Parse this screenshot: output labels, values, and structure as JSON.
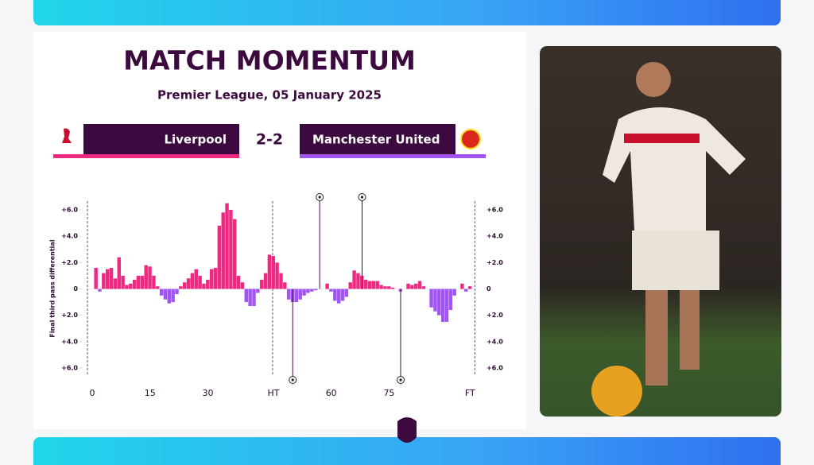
{
  "chart_data": {
    "type": "bar",
    "title": "MATCH MOMENTUM",
    "subtitle": "Premier League, 05 January 2025",
    "y_label": "Final third pass differential",
    "categories": [
      "0",
      null,
      null,
      null,
      null,
      null,
      null,
      null,
      null,
      null,
      null,
      null,
      null,
      null,
      null,
      "15",
      null,
      null,
      null,
      null,
      null,
      null,
      null,
      null,
      null,
      null,
      null,
      null,
      null,
      null,
      "30",
      null,
      null,
      null,
      null,
      null,
      null,
      null,
      null,
      null,
      null,
      null,
      null,
      null,
      null,
      null,
      null,
      "HT",
      null,
      null,
      null,
      null,
      null,
      null,
      null,
      null,
      null,
      null,
      null,
      null,
      null,
      null,
      "60",
      null,
      null,
      null,
      null,
      null,
      null,
      null,
      null,
      null,
      null,
      null,
      null,
      null,
      null,
      "75",
      null,
      null,
      null,
      null,
      null,
      null,
      null,
      null,
      null,
      null,
      null,
      null,
      null,
      null,
      null,
      null,
      null,
      null,
      null,
      null,
      "FT"
    ],
    "values": [
      0,
      1.6,
      -0.2,
      1.2,
      1.5,
      1.6,
      0.8,
      2.4,
      1.0,
      0.3,
      0.4,
      0.7,
      1.0,
      1.0,
      1.8,
      1.7,
      1.0,
      0.2,
      -0.5,
      -0.8,
      -1.1,
      -1.0,
      -0.4,
      0.2,
      0.5,
      0.8,
      1.2,
      1.5,
      1.0,
      0.4,
      0.7,
      1.5,
      1.6,
      4.8,
      5.8,
      6.5,
      6.0,
      5.3,
      1.0,
      0.5,
      -1.0,
      -1.3,
      -1.3,
      -0.3,
      0.7,
      1.2,
      2.6,
      2.5,
      2.0,
      1.2,
      0.5,
      -0.8,
      -1.0,
      -1.0,
      -0.8,
      -0.5,
      -0.3,
      -0.2,
      -0.1,
      0,
      0,
      0.4,
      -0.2,
      -0.9,
      -1.1,
      -0.9,
      -0.6,
      0.5,
      1.4,
      1.2,
      1.0,
      0.7,
      0.6,
      0.6,
      0.6,
      0.3,
      0.2,
      0.2,
      0.1,
      0,
      -0.2,
      0,
      0.4,
      0.3,
      0.4,
      0.6,
      0.2,
      0,
      -1.4,
      -1.7,
      -2.0,
      -2.5,
      -2.5,
      -1.6,
      -0.5,
      0,
      0.4,
      -0.2,
      0.2
    ],
    "positive_color": "#ec2a82",
    "negative_color": "#a155f2",
    "home_goals": [
      59,
      70
    ],
    "away_goals": [
      52,
      80
    ],
    "ylim": [
      -6,
      6
    ],
    "yticks": [
      {
        "value": -6,
        "label": "+6.0"
      },
      {
        "value": -4,
        "label": "+4.0"
      },
      {
        "value": -2,
        "label": "+2.0"
      },
      0,
      {
        "value": 2,
        "label": "+2.0"
      },
      {
        "value": 4,
        "label": "+4.0"
      },
      {
        "value": 6,
        "label": "+6.0"
      }
    ],
    "grid": false
  },
  "match": {
    "home": "Liverpool",
    "score": "2-2",
    "away": "Manchester United"
  }
}
